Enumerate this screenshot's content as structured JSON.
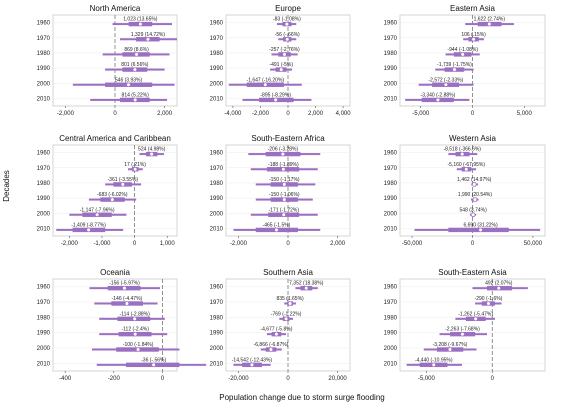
{
  "figure": {
    "xlabel": "Population change due to storm surge flooding",
    "ylabel": "Decades",
    "decades": [
      "1960",
      "1970",
      "1980",
      "1990",
      "2000",
      "2010"
    ],
    "colors": {
      "bar": "#9b6fc1",
      "point": "#ffffff",
      "zero_line": "#777777"
    }
  },
  "chart_data": [
    {
      "type": "interval",
      "title": "North America",
      "xlim": [
        -2500,
        2500
      ],
      "xticks": [
        -2000,
        0,
        2000
      ],
      "tick_labels": [
        "-2,000",
        "0",
        "2,000"
      ],
      "series": [
        {
          "y": "1960",
          "value": 1023,
          "label": "1,023 (13.65%)",
          "lo95": -100,
          "hi95": 2300,
          "lo50": 550,
          "hi50": 1500
        },
        {
          "y": "1970",
          "value": 1329,
          "label": "1,329 (14.72%)",
          "lo95": 200,
          "hi95": 2500,
          "lo50": 850,
          "hi50": 1800
        },
        {
          "y": "1980",
          "value": 869,
          "label": "869 (8.6%)",
          "lo95": -500,
          "hi95": 2200,
          "lo50": 300,
          "hi50": 1400
        },
        {
          "y": "1990",
          "value": 801,
          "label": "801 (6.56%)",
          "lo95": -400,
          "hi95": 2000,
          "lo50": 300,
          "hi50": 1300
        },
        {
          "y": "2000",
          "value": 546,
          "label": "546 (3.93%)",
          "lo95": -1700,
          "hi95": 2400,
          "lo50": -400,
          "hi50": 1500
        },
        {
          "y": "2010",
          "value": 814,
          "label": "814 (5.22%)",
          "lo95": -1000,
          "hi95": 2100,
          "lo50": 200,
          "hi50": 1400
        }
      ]
    },
    {
      "type": "interval",
      "title": "Europe",
      "xlim": [
        -4500,
        4500
      ],
      "xticks": [
        -4000,
        -2000,
        0,
        2000,
        4000
      ],
      "tick_labels": [
        "-4,000",
        "-2,000",
        "0",
        "2,000",
        "4,000"
      ],
      "series": [
        {
          "y": "1960",
          "value": -83,
          "label": "-83 (-1.08%)",
          "lo95": -800,
          "hi95": 600,
          "lo50": -400,
          "hi50": 250
        },
        {
          "y": "1970",
          "value": -56,
          "label": "-56 (-.66%)",
          "lo95": -700,
          "hi95": 600,
          "lo50": -350,
          "hi50": 250
        },
        {
          "y": "1980",
          "value": -257,
          "label": "-257 (-2.76%)",
          "lo95": -1200,
          "hi95": 700,
          "lo50": -700,
          "hi50": 200
        },
        {
          "y": "1990",
          "value": -491,
          "label": "-491 (-5%)",
          "lo95": -1300,
          "hi95": 300,
          "lo50": -900,
          "hi50": -100
        },
        {
          "y": "2000",
          "value": -1647,
          "label": "-1,647 (-16.20%)",
          "lo95": -4300,
          "hi95": 1000,
          "lo50": -3000,
          "hi50": -300
        },
        {
          "y": "2010",
          "value": -895,
          "label": "-895 (-8.29%)",
          "lo95": -3300,
          "hi95": 1700,
          "lo50": -2100,
          "hi50": 400
        }
      ]
    },
    {
      "type": "interval",
      "title": "Eastern Asia",
      "xlim": [
        -7000,
        7000
      ],
      "xticks": [
        -5000,
        0,
        5000
      ],
      "tick_labels": [
        "-5,000",
        "0",
        "5,000"
      ],
      "series": [
        {
          "y": "1960",
          "value": 1622,
          "label": "1,622 (2.74%)",
          "lo95": -700,
          "hi95": 4000,
          "lo50": 500,
          "hi50": 2800
        },
        {
          "y": "1970",
          "value": 106,
          "label": "106 (.15%)",
          "lo95": -900,
          "hi95": 1100,
          "lo50": -400,
          "hi50": 600
        },
        {
          "y": "1980",
          "value": -944,
          "label": "-944 (-1.08%)",
          "lo95": -2600,
          "hi95": 700,
          "lo50": -1800,
          "hi50": -100
        },
        {
          "y": "1990",
          "value": -1739,
          "label": "-1,739 (-1.75%)",
          "lo95": -3600,
          "hi95": 100,
          "lo50": -2700,
          "hi50": -800
        },
        {
          "y": "2000",
          "value": -2572,
          "label": "-2,572 (-2.33%)",
          "lo95": -5200,
          "hi95": 100,
          "lo50": -3900,
          "hi50": -1300
        },
        {
          "y": "2010",
          "value": -3340,
          "label": "-3,340 (-2.88%)",
          "lo95": -6500,
          "hi95": -300,
          "lo50": -4900,
          "hi50": -1800
        }
      ]
    },
    {
      "type": "interval",
      "title": "Central America and Caribbean",
      "xlim": [
        -2500,
        1300
      ],
      "xticks": [
        -2000,
        -1000,
        0,
        1000
      ],
      "tick_labels": [
        "-2,000",
        "-1,000",
        "0",
        "1,000"
      ],
      "series": [
        {
          "y": "1960",
          "value": 524,
          "label": "524 (4.98%)",
          "lo95": 150,
          "hi95": 900,
          "lo50": 350,
          "hi50": 700
        },
        {
          "y": "1970",
          "value": 17,
          "label": "17 (.21%)",
          "lo95": -200,
          "hi95": 250,
          "lo50": -80,
          "hi50": 120
        },
        {
          "y": "1980",
          "value": -361,
          "label": "-361 (-3.55%)",
          "lo95": -900,
          "hi95": 200,
          "lo50": -650,
          "hi50": -80
        },
        {
          "y": "1990",
          "value": -683,
          "label": "-683 (-6.02%)",
          "lo95": -1400,
          "hi95": 50,
          "lo50": -1050,
          "hi50": -300
        },
        {
          "y": "2000",
          "value": -1147,
          "label": "-1,147 (-7.96%)",
          "lo95": -2000,
          "hi95": -250,
          "lo50": -1600,
          "hi50": -700
        },
        {
          "y": "2010",
          "value": -1409,
          "label": "-1,409 (-8.77%)",
          "lo95": -2400,
          "hi95": -350,
          "lo50": -1900,
          "hi50": -900
        }
      ]
    },
    {
      "type": "interval",
      "title": "South-Eastern Africa",
      "xlim": [
        -2500,
        2500
      ],
      "xticks": [
        -2000,
        0,
        2000
      ],
      "tick_labels": [
        "-2,000",
        "0",
        "2,000"
      ],
      "series": [
        {
          "y": "1960",
          "value": -206,
          "label": "-206 (-3.28%)",
          "lo95": -1600,
          "hi95": 1300,
          "lo50": -900,
          "hi50": 500
        },
        {
          "y": "1970",
          "value": -188,
          "label": "-188 (-1.89%)",
          "lo95": -1500,
          "hi95": 1200,
          "lo50": -850,
          "hi50": 450
        },
        {
          "y": "1980",
          "value": -150,
          "label": "-150 (-1.17%)",
          "lo95": -1300,
          "hi95": 1100,
          "lo50": -700,
          "hi50": 400
        },
        {
          "y": "1990",
          "value": -150,
          "label": "-150 (-1.06%)",
          "lo95": -1300,
          "hi95": 1000,
          "lo50": -700,
          "hi50": 400
        },
        {
          "y": "2000",
          "value": -171,
          "label": "-171 (-1.72%)",
          "lo95": -1500,
          "hi95": 1200,
          "lo50": -800,
          "hi50": 450
        },
        {
          "y": "2010",
          "value": -465,
          "label": "-465 (-1.5%)",
          "lo95": -2200,
          "hi95": 1300,
          "lo50": -1300,
          "hi50": 400
        }
      ]
    },
    {
      "type": "interval",
      "title": "Western Asia",
      "xlim": [
        -60000,
        60000
      ],
      "xticks": [
        -50000,
        0,
        50000
      ],
      "tick_labels": [
        "-50,000",
        "0",
        "50,000"
      ],
      "series": [
        {
          "y": "1960",
          "value": -8518,
          "label": "-8,518 (-366.6%)",
          "lo95": -20000,
          "hi95": 4000,
          "lo50": -14000,
          "hi50": -2500
        },
        {
          "y": "1970",
          "value": -5160,
          "label": "-5,160 (-67.95%)",
          "lo95": -13000,
          "hi95": 3000,
          "lo50": -9000,
          "hi50": -1000
        },
        {
          "y": "1980",
          "value": 1462,
          "label": "1,462 (14.97%)",
          "lo95": -1000,
          "hi95": 4500,
          "lo50": 300,
          "hi50": 2800
        },
        {
          "y": "1990",
          "value": 1990,
          "label": "1,990 (20.54%)",
          "lo95": -1200,
          "hi95": 5000,
          "lo50": 500,
          "hi50": 3500
        },
        {
          "y": "2000",
          "value": 548,
          "label": "548 (3.74%)",
          "lo95": -2000,
          "hi95": 3000,
          "lo50": -700,
          "hi50": 1800
        },
        {
          "y": "2010",
          "value": 6690,
          "label": "6,690 (31.22%)",
          "lo95": -48000,
          "hi95": 56000,
          "lo50": -20000,
          "hi50": 30000
        }
      ]
    },
    {
      "type": "interval",
      "title": "Oceania",
      "xlim": [
        -450,
        60
      ],
      "xticks": [
        -400,
        -200,
        0
      ],
      "tick_labels": [
        "-400",
        "-200",
        "0"
      ],
      "series": [
        {
          "y": "1960",
          "value": -156,
          "label": "-156 (-5.97%)",
          "lo95": -300,
          "hi95": -10,
          "lo50": -225,
          "hi50": -90
        },
        {
          "y": "1970",
          "value": -146,
          "label": "-146 (-4.47%)",
          "lo95": -280,
          "hi95": -20,
          "lo50": -210,
          "hi50": -80
        },
        {
          "y": "1980",
          "value": -114,
          "label": "-114 (-2.88%)",
          "lo95": -260,
          "hi95": 10,
          "lo50": -185,
          "hi50": -50
        },
        {
          "y": "1990",
          "value": -112,
          "label": "-112 (-2.4%)",
          "lo95": -260,
          "hi95": 20,
          "lo50": -180,
          "hi50": -45
        },
        {
          "y": "2000",
          "value": -100,
          "label": "-100 (-1.84%)",
          "lo95": -290,
          "hi95": 70,
          "lo50": -190,
          "hi50": -15
        },
        {
          "y": "2010",
          "value": -36,
          "label": "-36 (-.56%)",
          "lo95": -270,
          "hi95": 180,
          "lo50": -150,
          "hi50": 70
        }
      ]
    },
    {
      "type": "interval",
      "title": "Southern Asia",
      "xlim": [
        -25000,
        25000
      ],
      "xticks": [
        -20000,
        0,
        20000
      ],
      "tick_labels": [
        "-20,000",
        "0",
        "20,000"
      ],
      "series": [
        {
          "y": "1960",
          "value": 7352,
          "label": "7,352 (18.38%)",
          "lo95": 3000,
          "hi95": 12000,
          "lo50": 5000,
          "hi50": 9800
        },
        {
          "y": "1970",
          "value": 835,
          "label": "835 (1.65%)",
          "lo95": -1500,
          "hi95": 3200,
          "lo50": -300,
          "hi50": 2000
        },
        {
          "y": "1980",
          "value": -769,
          "label": "-769 (-1.22%)",
          "lo95": -3500,
          "hi95": 2000,
          "lo50": -2100,
          "hi50": 600
        },
        {
          "y": "1990",
          "value": -4677,
          "label": "-4,677 (-5.8%)",
          "lo95": -8500,
          "hi95": -800,
          "lo50": -6600,
          "hi50": -2700
        },
        {
          "y": "2000",
          "value": -6866,
          "label": "-6,866 (-6.87%)",
          "lo95": -11000,
          "hi95": -2500,
          "lo50": -9000,
          "hi50": -4700
        },
        {
          "y": "2010",
          "value": -14542,
          "label": "-14,542 (-12.43%)",
          "lo95": -22000,
          "hi95": -7000,
          "lo50": -18500,
          "hi50": -10500
        }
      ]
    },
    {
      "type": "interval",
      "title": "South-Eastern Asia",
      "xlim": [
        -7000,
        4000
      ],
      "xticks": [
        -5000,
        0
      ],
      "tick_labels": [
        "-5,000",
        "0"
      ],
      "series": [
        {
          "y": "1960",
          "value": 492,
          "label": "492 (2.07%)",
          "lo95": -1500,
          "hi95": 2700,
          "lo50": -400,
          "hi50": 1500
        },
        {
          "y": "1970",
          "value": -290,
          "label": "-290 (-1.6%)",
          "lo95": -1300,
          "hi95": 700,
          "lo50": -800,
          "hi50": 200
        },
        {
          "y": "1980",
          "value": -1262,
          "label": "-1,262 (-5.47%)",
          "lo95": -2800,
          "hi95": 200,
          "lo50": -2000,
          "hi50": -500
        },
        {
          "y": "1990",
          "value": -2263,
          "label": "-2,263 (-7.68%)",
          "lo95": -4000,
          "hi95": -400,
          "lo50": -3200,
          "hi50": -1300
        },
        {
          "y": "2000",
          "value": -3208,
          "label": "-3,208 (-9.67%)",
          "lo95": -5200,
          "hi95": -1200,
          "lo50": -4200,
          "hi50": -2200
        },
        {
          "y": "2010",
          "value": -4440,
          "label": "-4,440 (-10.95%)",
          "lo95": -6500,
          "hi95": -2300,
          "lo50": -5500,
          "hi50": -3400
        }
      ]
    }
  ]
}
